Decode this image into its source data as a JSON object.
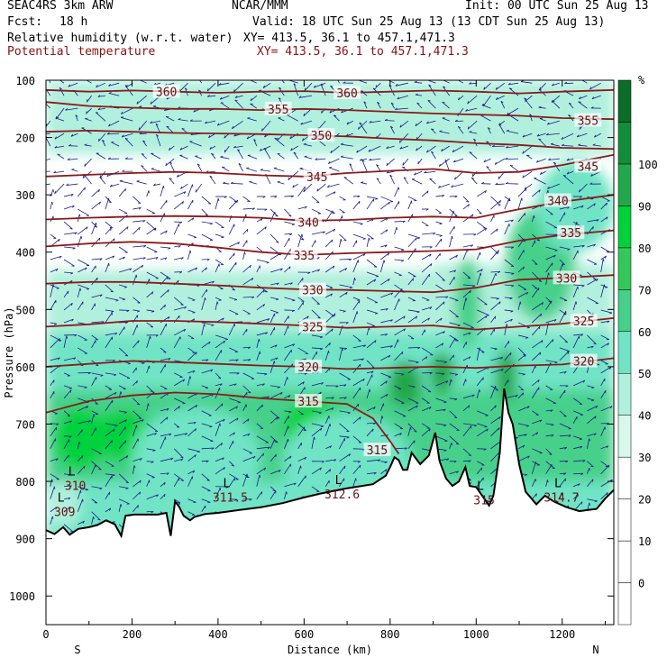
{
  "header": {
    "model": "SEAC4RS  3km ARW",
    "org": "NCAR/MMM",
    "init": "Init: 00 UTC Sun 25 Aug 13",
    "fcst_label": "Fcst:",
    "fcst_value": "18 h",
    "valid": "Valid: 18 UTC Sun 25 Aug 13 (13 CDT Sun 25 Aug 13)",
    "field1": "Relative humidity (w.r.t. water)",
    "xy1": "XY= 413.5, 36.1 to 457.1,471.3",
    "field2": "Potential temperature",
    "xy2": "XY= 413.5, 36.1 to 457.1,471.3"
  },
  "colors": {
    "theta": "#8b1a1a",
    "wind": "#1a1a8c",
    "terrain_line": "#000000"
  },
  "chart_data": {
    "type": "heatmap",
    "xlabel": "Distance (km)",
    "ylabel": "Pressure (hPa)",
    "xlim": [
      0,
      1320
    ],
    "ylim": [
      1050,
      100
    ],
    "x_ticks": [
      0,
      200,
      400,
      600,
      800,
      1000,
      1200
    ],
    "y_ticks": [
      100,
      200,
      300,
      400,
      500,
      600,
      700,
      800,
      900,
      1000
    ],
    "endpoint_labels": {
      "left": "S",
      "right": "N"
    },
    "colorbar": {
      "unit": "%",
      "ticks": [
        0,
        10,
        20,
        30,
        40,
        50,
        60,
        70,
        80,
        90,
        100
      ],
      "levels": [
        -10,
        0,
        10,
        20,
        30,
        40,
        50,
        60,
        70,
        80,
        90,
        100,
        110
      ],
      "colors": [
        "#ffffff",
        "#ffffff",
        "#ffffff",
        "#ffffff",
        "#d8f8ea",
        "#b0f0dc",
        "#70e4c4",
        "#46d08a",
        "#34c85a",
        "#00d23c",
        "#22a84a",
        "#128e3a",
        "#0a6e28"
      ]
    },
    "terrain_profile": [
      [
        0,
        885
      ],
      [
        20,
        892
      ],
      [
        40,
        880
      ],
      [
        55,
        893
      ],
      [
        75,
        883
      ],
      [
        100,
        880
      ],
      [
        120,
        876
      ],
      [
        140,
        868
      ],
      [
        160,
        875
      ],
      [
        175,
        895
      ],
      [
        185,
        860
      ],
      [
        205,
        858
      ],
      [
        230,
        858
      ],
      [
        260,
        858
      ],
      [
        280,
        855
      ],
      [
        290,
        895
      ],
      [
        300,
        835
      ],
      [
        310,
        845
      ],
      [
        320,
        860
      ],
      [
        335,
        868
      ],
      [
        345,
        862
      ],
      [
        370,
        857
      ],
      [
        400,
        855
      ],
      [
        450,
        850
      ],
      [
        500,
        845
      ],
      [
        550,
        838
      ],
      [
        600,
        828
      ],
      [
        640,
        821
      ],
      [
        700,
        812
      ],
      [
        760,
        805
      ],
      [
        790,
        790
      ],
      [
        800,
        775
      ],
      [
        810,
        758
      ],
      [
        820,
        763
      ],
      [
        830,
        780
      ],
      [
        840,
        780
      ],
      [
        850,
        750
      ],
      [
        870,
        770
      ],
      [
        890,
        755
      ],
      [
        905,
        715
      ],
      [
        915,
        765
      ],
      [
        930,
        795
      ],
      [
        945,
        808
      ],
      [
        960,
        800
      ],
      [
        975,
        775
      ],
      [
        985,
        808
      ],
      [
        1000,
        810
      ],
      [
        1030,
        842
      ],
      [
        1040,
        825
      ],
      [
        1055,
        750
      ],
      [
        1065,
        638
      ],
      [
        1075,
        680
      ],
      [
        1085,
        700
      ],
      [
        1100,
        770
      ],
      [
        1115,
        818
      ],
      [
        1140,
        840
      ],
      [
        1160,
        825
      ],
      [
        1180,
        835
      ],
      [
        1210,
        845
      ],
      [
        1240,
        852
      ],
      [
        1260,
        850
      ],
      [
        1280,
        848
      ],
      [
        1300,
        830
      ],
      [
        1320,
        815
      ]
    ],
    "rh_patches": [
      {
        "x": 80,
        "p": 725,
        "rx": 60,
        "rp": 55,
        "rh": 88
      },
      {
        "x": 180,
        "p": 720,
        "rx": 70,
        "rp": 45,
        "rh": 85
      },
      {
        "x": 620,
        "p": 705,
        "rx": 70,
        "rp": 45,
        "rh": 88
      },
      {
        "x": 835,
        "p": 630,
        "rx": 40,
        "rp": 40,
        "rh": 92
      },
      {
        "x": 920,
        "p": 610,
        "rx": 30,
        "rp": 35,
        "rh": 92
      },
      {
        "x": 1070,
        "p": 615,
        "rx": 25,
        "rp": 45,
        "rh": 95
      },
      {
        "x": 980,
        "p": 490,
        "rx": 30,
        "rp": 80,
        "rh": 65
      },
      {
        "x": 1150,
        "p": 420,
        "rx": 80,
        "rp": 100,
        "rh": 62
      },
      {
        "x": 1230,
        "p": 320,
        "rx": 90,
        "rp": 80,
        "rh": 55
      },
      {
        "x": 350,
        "p": 760,
        "rx": 150,
        "rp": 90,
        "rh": 50
      },
      {
        "x": 700,
        "p": 770,
        "rx": 150,
        "rp": 90,
        "rh": 52
      },
      {
        "x": 40,
        "p": 840,
        "rx": 40,
        "rp": 40,
        "rh": 45
      }
    ],
    "theta_contours": [
      {
        "value": 360,
        "labels": [
          [
            280,
            120
          ],
          [
            700,
            122
          ]
        ],
        "points": [
          [
            0,
            117
          ],
          [
            100,
            120
          ],
          [
            200,
            118
          ],
          [
            300,
            120
          ],
          [
            400,
            122
          ],
          [
            500,
            120
          ],
          [
            600,
            119
          ],
          [
            700,
            122
          ],
          [
            800,
            120
          ],
          [
            900,
            118
          ],
          [
            1000,
            120
          ],
          [
            1100,
            123
          ],
          [
            1200,
            120
          ],
          [
            1320,
            117
          ]
        ]
      },
      {
        "value": 355,
        "labels": [
          [
            540,
            150
          ],
          [
            1260,
            170
          ]
        ],
        "points": [
          [
            0,
            138
          ],
          [
            100,
            145
          ],
          [
            200,
            148
          ],
          [
            300,
            150
          ],
          [
            400,
            150
          ],
          [
            500,
            152
          ],
          [
            600,
            150
          ],
          [
            700,
            152
          ],
          [
            800,
            155
          ],
          [
            900,
            158
          ],
          [
            1000,
            160
          ],
          [
            1100,
            162
          ],
          [
            1200,
            166
          ],
          [
            1320,
            168
          ]
        ]
      },
      {
        "value": 350,
        "labels": [
          [
            640,
            196
          ]
        ],
        "points": [
          [
            0,
            190
          ],
          [
            100,
            188
          ],
          [
            200,
            190
          ],
          [
            300,
            192
          ],
          [
            400,
            193
          ],
          [
            500,
            194
          ],
          [
            600,
            196
          ],
          [
            700,
            198
          ],
          [
            800,
            202
          ],
          [
            900,
            205
          ],
          [
            1000,
            210
          ],
          [
            1100,
            213
          ],
          [
            1200,
            218
          ],
          [
            1320,
            220
          ]
        ]
      },
      {
        "value": 345,
        "labels": [
          [
            630,
            268
          ],
          [
            1260,
            250
          ]
        ],
        "points": [
          [
            0,
            268
          ],
          [
            100,
            265
          ],
          [
            200,
            262
          ],
          [
            300,
            260
          ],
          [
            400,
            262
          ],
          [
            500,
            266
          ],
          [
            600,
            268
          ],
          [
            700,
            262
          ],
          [
            800,
            258
          ],
          [
            900,
            255
          ],
          [
            1000,
            262
          ],
          [
            1100,
            260
          ],
          [
            1200,
            248
          ],
          [
            1320,
            230
          ]
        ]
      },
      {
        "value": 340,
        "labels": [
          [
            610,
            348
          ],
          [
            1190,
            310
          ]
        ],
        "points": [
          [
            0,
            343
          ],
          [
            100,
            340
          ],
          [
            200,
            338
          ],
          [
            300,
            337
          ],
          [
            400,
            338
          ],
          [
            500,
            340
          ],
          [
            600,
            345
          ],
          [
            700,
            344
          ],
          [
            800,
            340
          ],
          [
            900,
            338
          ],
          [
            1000,
            340
          ],
          [
            1100,
            325
          ],
          [
            1200,
            312
          ],
          [
            1320,
            300
          ]
        ]
      },
      {
        "value": 335,
        "labels": [
          [
            600,
            405
          ],
          [
            1220,
            366
          ]
        ],
        "points": [
          [
            0,
            390
          ],
          [
            100,
            385
          ],
          [
            200,
            382
          ],
          [
            300,
            385
          ],
          [
            400,
            392
          ],
          [
            500,
            400
          ],
          [
            600,
            405
          ],
          [
            700,
            402
          ],
          [
            800,
            400
          ],
          [
            900,
            398
          ],
          [
            1000,
            395
          ],
          [
            1100,
            380
          ],
          [
            1200,
            370
          ],
          [
            1320,
            362
          ]
        ]
      },
      {
        "value": 330,
        "labels": [
          [
            620,
            466
          ],
          [
            1210,
            445
          ]
        ],
        "points": [
          [
            0,
            455
          ],
          [
            100,
            452
          ],
          [
            200,
            452
          ],
          [
            300,
            455
          ],
          [
            400,
            458
          ],
          [
            500,
            462
          ],
          [
            600,
            465
          ],
          [
            700,
            466
          ],
          [
            800,
            468
          ],
          [
            900,
            470
          ],
          [
            1000,
            462
          ],
          [
            1100,
            448
          ],
          [
            1200,
            445
          ],
          [
            1320,
            440
          ]
        ]
      },
      {
        "value": 325,
        "labels": [
          [
            620,
            530
          ],
          [
            1250,
            520
          ]
        ],
        "points": [
          [
            0,
            530
          ],
          [
            100,
            526
          ],
          [
            200,
            520
          ],
          [
            300,
            520
          ],
          [
            400,
            522
          ],
          [
            500,
            525
          ],
          [
            600,
            528
          ],
          [
            700,
            532
          ],
          [
            800,
            530
          ],
          [
            900,
            528
          ],
          [
            1000,
            535
          ],
          [
            1100,
            530
          ],
          [
            1200,
            525
          ],
          [
            1320,
            515
          ]
        ]
      },
      {
        "value": 320,
        "labels": [
          [
            610,
            600
          ],
          [
            1250,
            590
          ]
        ],
        "points": [
          [
            0,
            600
          ],
          [
            100,
            595
          ],
          [
            200,
            590
          ],
          [
            300,
            592
          ],
          [
            400,
            595
          ],
          [
            500,
            598
          ],
          [
            600,
            600
          ],
          [
            700,
            604
          ],
          [
            800,
            602
          ],
          [
            900,
            600
          ],
          [
            1000,
            602
          ],
          [
            1100,
            598
          ],
          [
            1200,
            596
          ],
          [
            1320,
            585
          ]
        ]
      },
      {
        "value": 315,
        "labels": [
          [
            610,
            660
          ],
          [
            770,
            745
          ]
        ],
        "points": [
          [
            0,
            680
          ],
          [
            100,
            660
          ],
          [
            200,
            650
          ],
          [
            300,
            645
          ],
          [
            400,
            648
          ],
          [
            500,
            655
          ],
          [
            600,
            660
          ],
          [
            700,
            665
          ],
          [
            760,
            690
          ],
          [
            800,
            730
          ],
          [
            820,
            752
          ]
        ]
      }
    ],
    "labels_low": [
      {
        "letter": "L",
        "x": 35,
        "p": 835,
        "value": "309"
      },
      {
        "letter": "L",
        "x": 60,
        "p": 790,
        "value": "310"
      },
      {
        "letter": "L",
        "x": 420,
        "p": 810,
        "value": "311.5"
      },
      {
        "letter": "L",
        "x": 680,
        "p": 805,
        "value": "312.6"
      },
      {
        "letter": "L",
        "x": 1010,
        "p": 815,
        "value": "315"
      },
      {
        "letter": "L",
        "x": 1190,
        "p": 810,
        "value": "314.7"
      }
    ]
  }
}
